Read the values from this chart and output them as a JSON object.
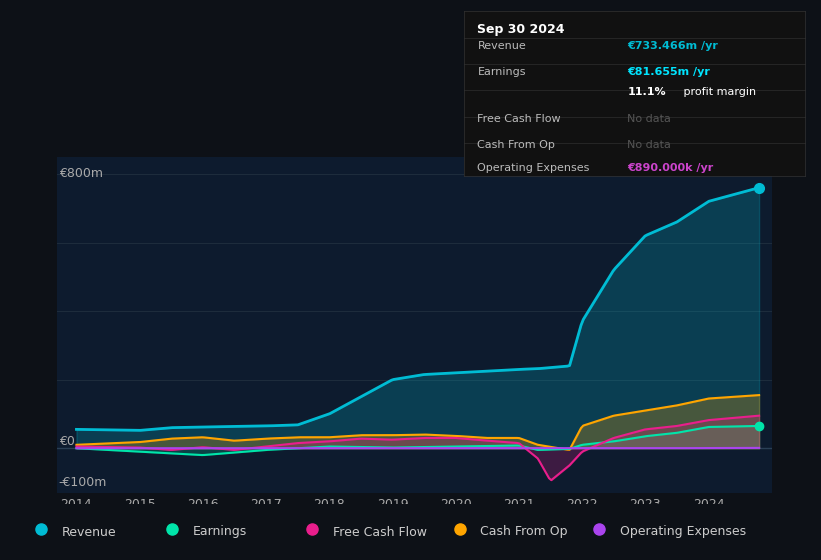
{
  "bg_color": "#0d1117",
  "plot_bg_color": "#0d1b2e",
  "info_box_bg": "#111111",
  "info_box_date": "Sep 30 2024",
  "info_box_rows": [
    {
      "label": "Revenue",
      "value": "€733.466m /yr",
      "value_color": "#00bcd4",
      "no_data": false
    },
    {
      "label": "Earnings",
      "value": "€81.655m /yr",
      "value_color": "#00e5ff",
      "no_data": false
    },
    {
      "label": "",
      "value": "11.1% profit margin",
      "value_color": "#ffffff",
      "no_data": false
    },
    {
      "label": "Free Cash Flow",
      "value": "No data",
      "value_color": "#555555",
      "no_data": true
    },
    {
      "label": "Cash From Op",
      "value": "No data",
      "value_color": "#555555",
      "no_data": true
    },
    {
      "label": "Operating Expenses",
      "value": "€890.000k /yr",
      "value_color": "#cc44cc",
      "no_data": false
    }
  ],
  "y_label_800": "€800m",
  "y_label_0": "€0",
  "y_label_neg100": "-€100m",
  "ylim": [
    -130,
    850
  ],
  "xlim": [
    2013.7,
    2025.0
  ],
  "x_ticks": [
    2014,
    2015,
    2016,
    2017,
    2018,
    2019,
    2020,
    2021,
    2022,
    2023,
    2024
  ],
  "grid_color": "#1e2d3d",
  "grid_y_vals": [
    0,
    200,
    400,
    600,
    800
  ],
  "legend": [
    {
      "label": "Revenue",
      "color": "#00bcd4"
    },
    {
      "label": "Earnings",
      "color": "#00e5aa"
    },
    {
      "label": "Free Cash Flow",
      "color": "#e91e8c"
    },
    {
      "label": "Cash From Op",
      "color": "#ffa500"
    },
    {
      "label": "Operating Expenses",
      "color": "#aa44ee"
    }
  ],
  "c_rev": "#00bcd4",
  "c_earn": "#00e5aa",
  "c_fcf": "#e91e8c",
  "c_cop": "#ffa500",
  "c_opex": "#aa44ee",
  "rev_x": [
    2014,
    2015,
    2015.5,
    2016,
    2017,
    2017.5,
    2018,
    2018.5,
    2019,
    2019.5,
    2020,
    2020.5,
    2021,
    2021.3,
    2021.8,
    2022,
    2022.5,
    2023,
    2023.5,
    2024,
    2024.8
  ],
  "rev_y": [
    55,
    52,
    60,
    62,
    65,
    68,
    100,
    150,
    200,
    215,
    220,
    225,
    230,
    232,
    240,
    370,
    520,
    620,
    660,
    720,
    760
  ],
  "earn_x": [
    2014,
    2015,
    2016,
    2017,
    2018,
    2019,
    2020,
    2021,
    2021.3,
    2021.8,
    2022,
    2022.5,
    2023,
    2023.5,
    2024,
    2024.8
  ],
  "earn_y": [
    0,
    -10,
    -20,
    -5,
    5,
    2,
    5,
    8,
    -5,
    -2,
    10,
    20,
    35,
    45,
    62,
    65
  ],
  "fcf_x": [
    2014,
    2015,
    2015.5,
    2016,
    2016.5,
    2017,
    2017.5,
    2018,
    2018.5,
    2019,
    2019.5,
    2020,
    2020.5,
    2021,
    2021.3,
    2021.5,
    2021.8,
    2022,
    2022.5,
    2023,
    2023.5,
    2024,
    2024.8
  ],
  "fcf_y": [
    5,
    2,
    -5,
    3,
    -5,
    5,
    15,
    20,
    28,
    25,
    30,
    30,
    22,
    15,
    -30,
    -95,
    -50,
    -10,
    30,
    55,
    65,
    82,
    95
  ],
  "cop_x": [
    2014,
    2015,
    2015.5,
    2016,
    2016.5,
    2017,
    2017.5,
    2018,
    2018.5,
    2019,
    2019.5,
    2020,
    2020.5,
    2021,
    2021.3,
    2021.8,
    2022,
    2022.5,
    2023,
    2023.5,
    2024,
    2024.8
  ],
  "cop_y": [
    10,
    18,
    28,
    32,
    22,
    28,
    32,
    32,
    38,
    38,
    40,
    36,
    30,
    30,
    10,
    -5,
    65,
    95,
    110,
    125,
    145,
    155
  ],
  "opex_x": [
    2014,
    2022,
    2023,
    2024,
    2024.8
  ],
  "opex_y": [
    0,
    0,
    0,
    0.5,
    1.0
  ]
}
